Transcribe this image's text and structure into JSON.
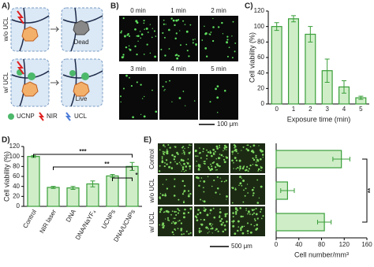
{
  "panel_labels": [
    "A)",
    "B)",
    "C)",
    "D)",
    "E)"
  ],
  "schematic": {
    "row_labels": [
      "w/o UCL",
      "w/ UCL"
    ],
    "states": [
      "Dead",
      "Live"
    ],
    "legend": [
      "UCNP",
      "NIR",
      "UCL"
    ]
  },
  "micrographs_b": {
    "times": [
      "0 min",
      "1 min",
      "2 min",
      "3 min",
      "4 min",
      "5 min"
    ],
    "scale_bar": "100 μm"
  },
  "micrographs_e": {
    "scale_bar": "500 μm"
  },
  "chart_data": [
    {
      "type": "bar",
      "ylabel": "Cell viability (%)",
      "xlabel": "Exposure time (min)",
      "categories": [
        "0",
        "1",
        "2",
        "3",
        "4",
        "5"
      ],
      "values": [
        100,
        110,
        90,
        43,
        22,
        8
      ],
      "errors": [
        5,
        4,
        10,
        15,
        8,
        2
      ],
      "color": "#3a9e3a",
      "ylim": [
        0,
        120
      ],
      "yticks": [
        0,
        20,
        40,
        60,
        80,
        100,
        120
      ]
    },
    {
      "type": "bar",
      "ylabel": "Cell viability (%)",
      "categories": [
        "Control",
        "NIR laser",
        "DNA",
        "DNA/NaYF₄",
        "UCNPs",
        "DNA/UCNPs"
      ],
      "values": [
        100,
        38,
        37,
        45,
        61,
        80
      ],
      "errors": [
        2,
        2,
        3,
        6,
        3,
        8
      ],
      "color": "#3a9e3a",
      "ylim": [
        0,
        120
      ],
      "yticks": [
        0,
        20,
        40,
        60,
        80,
        100,
        120
      ],
      "annotations": [
        "***",
        "**",
        "*"
      ]
    },
    {
      "type": "barh",
      "xlabel": "Cell number/mm³",
      "categories": [
        "Control",
        "w/o UCL",
        "w/ UCL"
      ],
      "values": [
        115,
        20,
        85
      ],
      "errors": [
        15,
        12,
        12
      ],
      "color": "#3a9e3a",
      "xlim": [
        0,
        160
      ],
      "xticks": [
        0,
        40,
        80,
        120,
        160
      ],
      "annotations": [
        "**"
      ]
    }
  ]
}
